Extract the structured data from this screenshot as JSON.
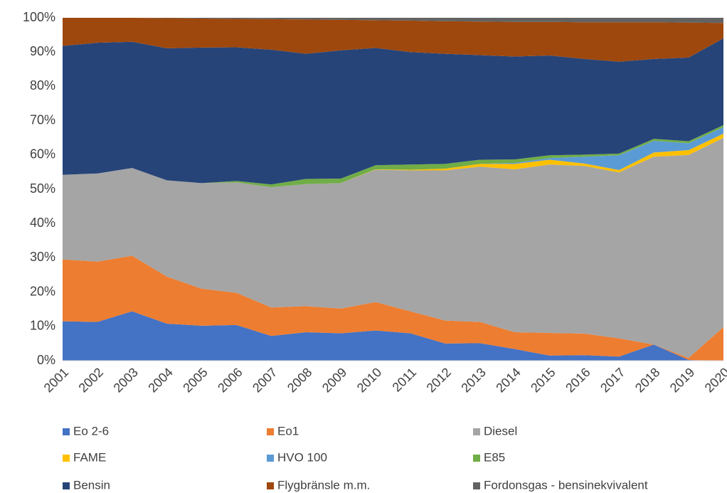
{
  "chart_data": {
    "type": "stacked_area_100",
    "categories": [
      "2001",
      "2002",
      "2003",
      "2004",
      "2005",
      "2006",
      "2007",
      "2008",
      "2009",
      "2010",
      "2011",
      "2012",
      "2013",
      "2014",
      "2015",
      "2016",
      "2017",
      "2018",
      "2019",
      "2020"
    ],
    "series": [
      {
        "name": "Eo 2-6",
        "color": "#4472c4",
        "values": [
          11.5,
          11.3,
          14.4,
          10.8,
          10.2,
          10.4,
          7.2,
          8.3,
          8.0,
          8.8,
          8.0,
          5.0,
          5.1,
          3.4,
          1.5,
          1.6,
          1.2,
          4.7,
          0.2,
          0
        ]
      },
      {
        "name": "Eo1",
        "color": "#ed7d31",
        "values": [
          18.0,
          17.6,
          16.2,
          13.7,
          10.8,
          9.4,
          8.3,
          7.6,
          7.2,
          8.3,
          6.4,
          6.7,
          6.2,
          4.9,
          6.6,
          6.3,
          5.3,
          0,
          0.6,
          9.8
        ]
      },
      {
        "name": "Diesel",
        "color": "#a5a5a5",
        "values": [
          24.7,
          25.7,
          25.6,
          28.1,
          30.8,
          32.2,
          35.1,
          35.6,
          36.6,
          38.6,
          41.1,
          43.8,
          45.3,
          47.5,
          49.1,
          48.9,
          48.4,
          54.8,
          59.2,
          55.2
        ]
      },
      {
        "name": "FAME",
        "color": "#ffc000",
        "values": [
          0,
          0,
          0,
          0,
          0,
          0,
          0,
          0,
          0,
          0.1,
          0.2,
          0.5,
          0.8,
          1.6,
          1.4,
          0.7,
          0.7,
          1.2,
          1.4,
          1.2
        ]
      },
      {
        "name": "HVO 100",
        "color": "#5b9bd5",
        "values": [
          0,
          0,
          0,
          0,
          0,
          0,
          0,
          0,
          0,
          0,
          0,
          0,
          0,
          0.3,
          0.5,
          2.0,
          4.3,
          3.4,
          2.0,
          1.9
        ]
      },
      {
        "name": "E85",
        "color": "#70ad47",
        "values": [
          0,
          0,
          0,
          0,
          0,
          0.4,
          0.8,
          1.5,
          1.3,
          1.2,
          1.5,
          1.4,
          1.2,
          1.0,
          0.8,
          0.6,
          0.5,
          0.6,
          0.6,
          0.6
        ]
      },
      {
        "name": "Bensin",
        "color": "#264478",
        "values": [
          37.6,
          38.1,
          36.8,
          38.5,
          39.5,
          39.0,
          39.3,
          36.5,
          37.4,
          34.2,
          32.8,
          32.1,
          30.5,
          30.0,
          29.1,
          27.9,
          26.8,
          23.3,
          24.4,
          25.3
        ]
      },
      {
        "name": "Flygbränsle m.m.",
        "color": "#9e480e",
        "values": [
          8.2,
          7.3,
          7.0,
          8.8,
          8.5,
          8.3,
          8.9,
          10.0,
          8.9,
          8.1,
          9.2,
          9.5,
          9.8,
          10.1,
          9.8,
          10.7,
          11.5,
          10.7,
          10.2,
          4.5
        ]
      },
      {
        "name": "Fordonsgas - bensinekvivalent",
        "color": "#636363",
        "values": [
          0,
          0,
          0,
          0.1,
          0.2,
          0.3,
          0.4,
          0.5,
          0.6,
          0.7,
          0.8,
          1.0,
          1.1,
          1.2,
          1.2,
          1.3,
          1.3,
          1.3,
          1.4,
          1.5
        ]
      }
    ],
    "ylim": [
      0,
      100
    ],
    "yticks": [
      {
        "value": 0,
        "label": "0%"
      },
      {
        "value": 10,
        "label": "10%"
      },
      {
        "value": 20,
        "label": "20%"
      },
      {
        "value": 30,
        "label": "30%"
      },
      {
        "value": 40,
        "label": "40%"
      },
      {
        "value": 50,
        "label": "50%"
      },
      {
        "value": 60,
        "label": "60%"
      },
      {
        "value": 70,
        "label": "70%"
      },
      {
        "value": 80,
        "label": "80%"
      },
      {
        "value": 90,
        "label": "90%"
      },
      {
        "value": 100,
        "label": "100%"
      }
    ],
    "grid": false,
    "legend": "bottom"
  }
}
